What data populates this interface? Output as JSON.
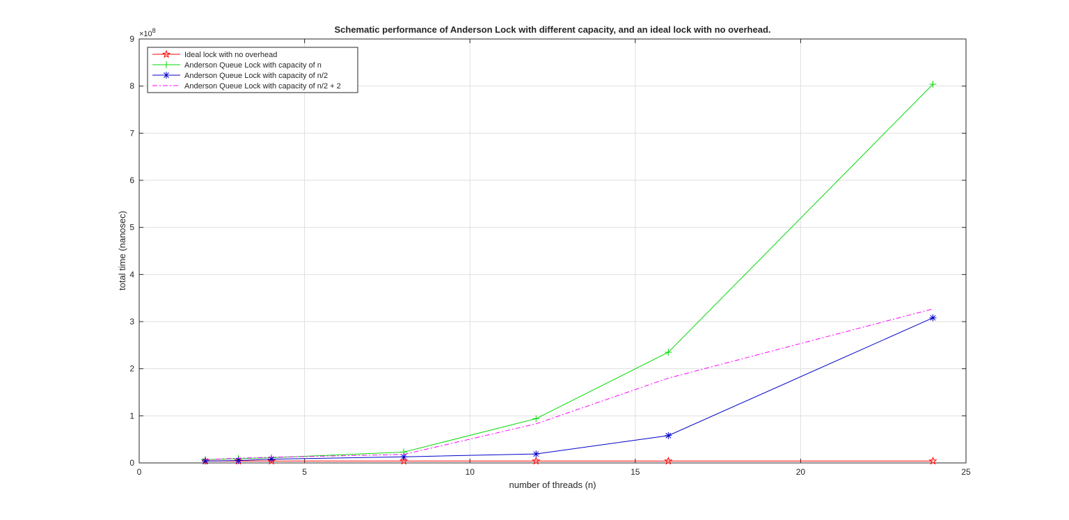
{
  "chart_data": {
    "type": "line",
    "title": "Schematic performance of Anderson Lock with different capacity, and an ideal lock with no overhead.",
    "xlabel": "number of threads (n)",
    "ylabel": "total time (nanosec)",
    "y_exponent_label": "×10",
    "y_exponent_power": "8",
    "xlim": [
      0,
      25
    ],
    "ylim": [
      0,
      9
    ],
    "xticks": [
      0,
      5,
      10,
      15,
      20,
      25
    ],
    "yticks": [
      0,
      1,
      2,
      3,
      4,
      5,
      6,
      7,
      8,
      9
    ],
    "grid": true,
    "legend_position": "top-left",
    "x": [
      2,
      3,
      4,
      8,
      12,
      16,
      24
    ],
    "series": [
      {
        "name": "Ideal lock with no overhead",
        "color": "#ff0000",
        "marker": "pentagram",
        "dash": "solid",
        "values": [
          0.04,
          0.04,
          0.04,
          0.04,
          0.04,
          0.04,
          0.04
        ]
      },
      {
        "name": "Anderson Queue Lock with capacity of n",
        "color": "#00d800",
        "marker": "plus",
        "dash": "solid",
        "values": [
          0.07,
          0.09,
          0.11,
          0.23,
          0.94,
          2.35,
          8.04
        ]
      },
      {
        "name": "Anderson Queue Lock with capacity of n/2",
        "color": "#0000c8",
        "marker": "asterisk",
        "dash": "solid",
        "values": [
          0.04,
          0.05,
          0.08,
          0.13,
          0.19,
          0.58,
          3.08
        ]
      },
      {
        "name": "Anderson Queue Lock with capacity of n/2 + 2",
        "color": "#ff00ff",
        "marker": "none",
        "dash": "dashdot",
        "values": [
          0.07,
          0.1,
          0.12,
          0.18,
          0.83,
          1.8,
          3.27
        ]
      }
    ]
  }
}
